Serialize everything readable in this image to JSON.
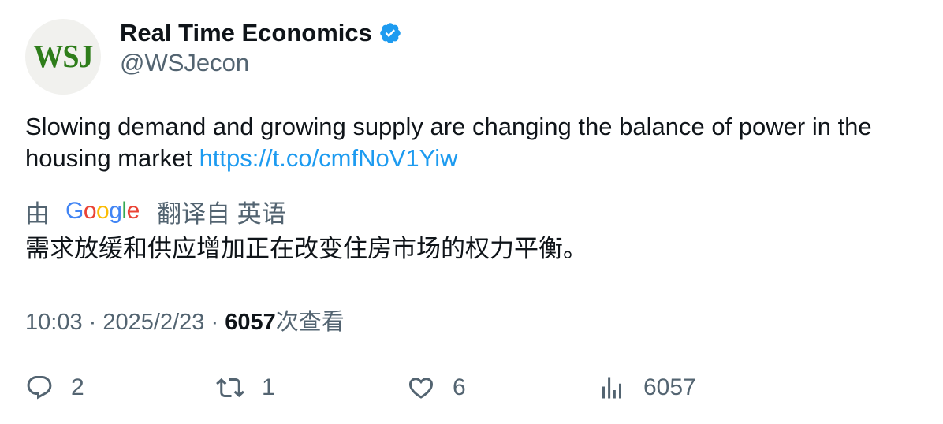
{
  "author": {
    "avatar_text": "WSJ",
    "display_name": "Real Time Economics",
    "handle": "@WSJecon"
  },
  "tweet": {
    "text": "Slowing demand and growing supply are changing the balance of power in the housing market ",
    "link": "https://t.co/cmfNoV1Yiw"
  },
  "translation": {
    "prefix": "由",
    "suffix": "翻译自 英语",
    "text": "需求放缓和供应增加正在改变住房市场的权力平衡。"
  },
  "meta": {
    "time": "10:03",
    "separator": "·",
    "date": "2025/2/23",
    "views_count": "6057",
    "views_label": "次查看"
  },
  "actions": {
    "replies": "2",
    "retweets": "1",
    "likes": "6",
    "views": "6057"
  },
  "colors": {
    "verified_badge": "#1d9bf0",
    "link": "#1d9bf0",
    "secondary_text": "#536471",
    "wsj_green": "#2e7d1a"
  }
}
